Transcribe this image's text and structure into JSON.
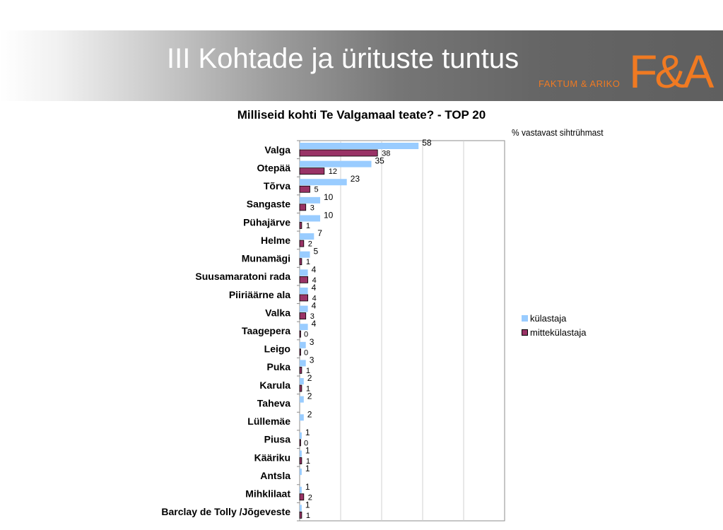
{
  "header": {
    "title": "III Kohtade ja ürituste tuntus",
    "logo_text": "F&A",
    "logo_subtitle": "FAKTUM & ARIKO"
  },
  "colors": {
    "kulastaja": "#99ccff",
    "mittekulastaja": "#993366",
    "logo": "#f07a22"
  },
  "chart_data": {
    "type": "bar",
    "orientation": "horizontal",
    "title": "Milliseid kohti Te Valgamaal teate? - TOP 20",
    "unit_label": "% vastavast sihtrühmast",
    "xlim": [
      0,
      100
    ],
    "grid": true,
    "legend_position": "right",
    "categories": [
      "Valga",
      "Otepää",
      "Tõrva",
      "Sangaste",
      "Pühajärve",
      "Helme",
      "Munamägi",
      "Suusamaratoni rada",
      "Piiriäärne ala",
      "Valka",
      "Taagepera",
      "Leigo",
      "Puka",
      "Karula",
      "Taheva",
      "Lüllemäe",
      "Piusa",
      "Kääriku",
      "Antsla",
      "Mihklilaat",
      "Barclay de Tolly /Jõgeveste"
    ],
    "series": [
      {
        "name": "külastaja",
        "values": [
          58,
          35,
          23,
          10,
          10,
          7,
          5,
          4,
          4,
          4,
          4,
          3,
          3,
          2,
          2,
          2,
          1,
          1,
          1,
          1,
          1
        ]
      },
      {
        "name": "mittekülastaja",
        "values": [
          38,
          12,
          5,
          3,
          1,
          2,
          1,
          4,
          4,
          3,
          0,
          0,
          1,
          1,
          null,
          null,
          0,
          1,
          null,
          2,
          1
        ]
      }
    ]
  }
}
